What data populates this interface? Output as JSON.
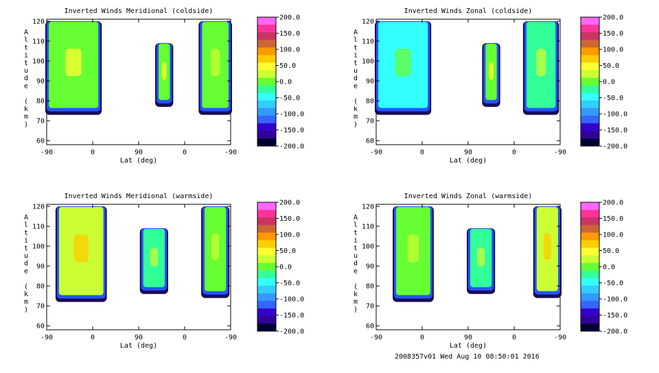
{
  "footer": "2008357v01 Wed Aug 10 08:50:01 2016",
  "chart_data": [
    {
      "type": "heatmap",
      "title": "Inverted Winds Meridional (coldside)",
      "xlabel": "Lat (deg)",
      "ylabel": "Altitude (km)",
      "x_ticks": [
        "-90",
        "0",
        "90",
        "0",
        "-90"
      ],
      "y_ticks": [
        "60",
        "70",
        "80",
        "90",
        "100",
        "110",
        "120"
      ],
      "ylim": [
        58,
        121
      ],
      "colorbar": {
        "ticks": [
          "200.0",
          "150.0",
          "100.0",
          "50.0",
          "0.0",
          "-50.0",
          "-100.0",
          "-150.0",
          "-200.0"
        ],
        "range": [
          -200,
          200
        ]
      },
      "regions": [
        {
          "xlim": [
            -90,
            15
          ],
          "ylim": [
            74,
            120
          ],
          "value": 0
        },
        {
          "xlim": [
            125,
            155
          ],
          "ylim": [
            78,
            109
          ],
          "value": 0
        },
        {
          "xlim": [
            210,
            270
          ],
          "ylim": [
            74,
            120
          ],
          "value": -10
        }
      ]
    },
    {
      "type": "heatmap",
      "title": "Inverted Winds Zonal (coldside)",
      "xlabel": "Lat (deg)",
      "ylabel": "Altitude (km)",
      "x_ticks": [
        "-90",
        "0",
        "90",
        "0",
        "-90"
      ],
      "y_ticks": [
        "60",
        "70",
        "80",
        "90",
        "100",
        "110",
        "120"
      ],
      "ylim": [
        58,
        121
      ],
      "colorbar": {
        "ticks": [
          "200.0",
          "150.0",
          "100.0",
          "50.0",
          "0.0",
          "-50.0",
          "-100.0",
          "-150.0",
          "-200.0"
        ],
        "range": [
          -200,
          200
        ]
      },
      "regions": [
        {
          "xlim": [
            -90,
            15
          ],
          "ylim": [
            74,
            120
          ],
          "value": -40
        },
        {
          "xlim": [
            120,
            150
          ],
          "ylim": [
            78,
            109
          ],
          "value": 0
        },
        {
          "xlim": [
            200,
            265
          ],
          "ylim": [
            74,
            120
          ],
          "value": -20
        }
      ]
    },
    {
      "type": "heatmap",
      "title": "Inverted Winds Meridional (warmside)",
      "xlabel": "Lat (deg)",
      "ylabel": "Altitude (km)",
      "x_ticks": [
        "-90",
        "0",
        "90",
        "0",
        "-90"
      ],
      "y_ticks": [
        "60",
        "70",
        "80",
        "90",
        "100",
        "110",
        "120"
      ],
      "ylim": [
        58,
        121
      ],
      "colorbar": {
        "ticks": [
          "200.0",
          "150.0",
          "100.0",
          "50.0",
          "0.0",
          "-50.0",
          "-100.0",
          "-150.0",
          "-200.0"
        ],
        "range": [
          -200,
          200
        ]
      },
      "regions": [
        {
          "xlim": [
            -70,
            25
          ],
          "ylim": [
            73,
            120
          ],
          "value": 20
        },
        {
          "xlim": [
            95,
            145
          ],
          "ylim": [
            77,
            109
          ],
          "value": -20
        },
        {
          "xlim": [
            215,
            265
          ],
          "ylim": [
            75,
            120
          ],
          "value": -10
        }
      ]
    },
    {
      "type": "heatmap",
      "title": "Inverted Winds Zonal (warmside)",
      "xlabel": "Lat (deg)",
      "ylabel": "Altitude (km)",
      "x_ticks": [
        "-90",
        "0",
        "90",
        "0",
        "-90"
      ],
      "y_ticks": [
        "60",
        "70",
        "80",
        "90",
        "100",
        "110",
        "120"
      ],
      "ylim": [
        58,
        121
      ],
      "colorbar": {
        "ticks": [
          "200.0",
          "150.0",
          "100.0",
          "50.0",
          "0.0",
          "-50.0",
          "-100.0",
          "-150.0",
          "-200.0"
        ],
        "range": [
          -200,
          200
        ]
      },
      "regions": [
        {
          "xlim": [
            -55,
            20
          ],
          "ylim": [
            73,
            120
          ],
          "value": -10
        },
        {
          "xlim": [
            90,
            140
          ],
          "ylim": [
            77,
            109
          ],
          "value": -20
        },
        {
          "xlim": [
            220,
            270
          ],
          "ylim": [
            75,
            120
          ],
          "value": 20
        }
      ]
    }
  ]
}
